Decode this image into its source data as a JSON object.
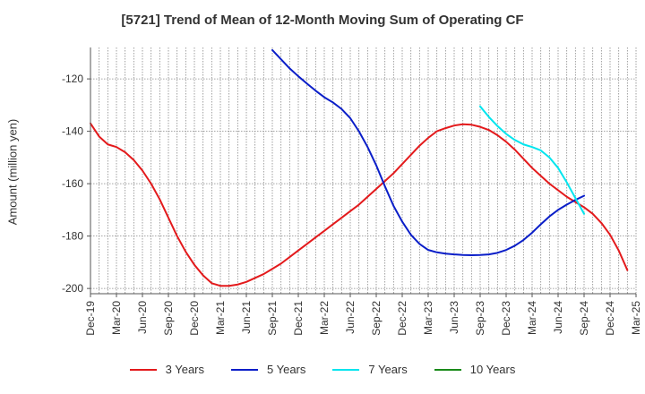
{
  "chart_data": {
    "type": "line",
    "title": "[5721]  Trend of Mean of 12-Month Moving Sum of Operating CF",
    "xlabel": "",
    "ylabel": "Amount (million yen)",
    "ylim": [
      -202,
      -108
    ],
    "yticks": [
      -120,
      -140,
      -160,
      -180,
      -200
    ],
    "x_months_range": [
      "Dec-19",
      "Mar-25"
    ],
    "x_tick_labels": [
      "Dec-19",
      "Mar-20",
      "Jun-20",
      "Sep-20",
      "Dec-20",
      "Mar-21",
      "Jun-21",
      "Sep-21",
      "Dec-21",
      "Mar-22",
      "Jun-22",
      "Sep-22",
      "Dec-22",
      "Mar-23",
      "Jun-23",
      "Sep-23",
      "Dec-23",
      "Mar-24",
      "Jun-24",
      "Sep-24",
      "Dec-24",
      "Mar-25"
    ],
    "grid": true,
    "series": [
      {
        "name": "3 Years",
        "color": "#e31a1c",
        "start_month_index": 0,
        "values": [
          -137,
          -142,
          -145,
          -146,
          -148,
          -151,
          -155,
          -160,
          -166,
          -173,
          -180,
          -186,
          -191,
          -195,
          -198,
          -199,
          -199,
          -198.5,
          -197.5,
          -196,
          -194.5,
          -192.5,
          -190.5,
          -188,
          -185.5,
          -183,
          -180.5,
          -178,
          -175.5,
          -173,
          -170.5,
          -168,
          -165,
          -162,
          -159,
          -156,
          -152.5,
          -149,
          -145.5,
          -142.5,
          -140,
          -138.8,
          -137.8,
          -137.3,
          -137.5,
          -138.3,
          -139.5,
          -141.5,
          -144,
          -147,
          -150.5,
          -154,
          -157,
          -160,
          -162.5,
          -165,
          -167,
          -169,
          -171.5,
          -175,
          -179.5,
          -185.5,
          -193
        ]
      },
      {
        "name": "5 Years",
        "color": "#0a1ec8",
        "start_month_index": 21,
        "values": [
          -109,
          -112.5,
          -116,
          -119,
          -121.8,
          -124.5,
          -127,
          -129,
          -131.5,
          -135,
          -140,
          -146,
          -153,
          -161,
          -168.5,
          -174.5,
          -179.5,
          -183,
          -185.3,
          -186.2,
          -186.7,
          -187,
          -187.2,
          -187.3,
          -187.2,
          -187,
          -186.4,
          -185.3,
          -183.7,
          -181.5,
          -178.7,
          -175.5,
          -172.5,
          -170,
          -168,
          -166.2,
          -164.6
        ]
      },
      {
        "name": "7 Years",
        "color": "#00e5ee",
        "start_month_index": 45,
        "values": [
          -130.5,
          -134.5,
          -138,
          -141,
          -143.3,
          -145,
          -146,
          -147.3,
          -150,
          -154,
          -159.5,
          -165.5,
          -171.5
        ]
      },
      {
        "name": "10 Years",
        "color": "#1a8a1a",
        "start_month_index": 0,
        "values": []
      }
    ]
  }
}
